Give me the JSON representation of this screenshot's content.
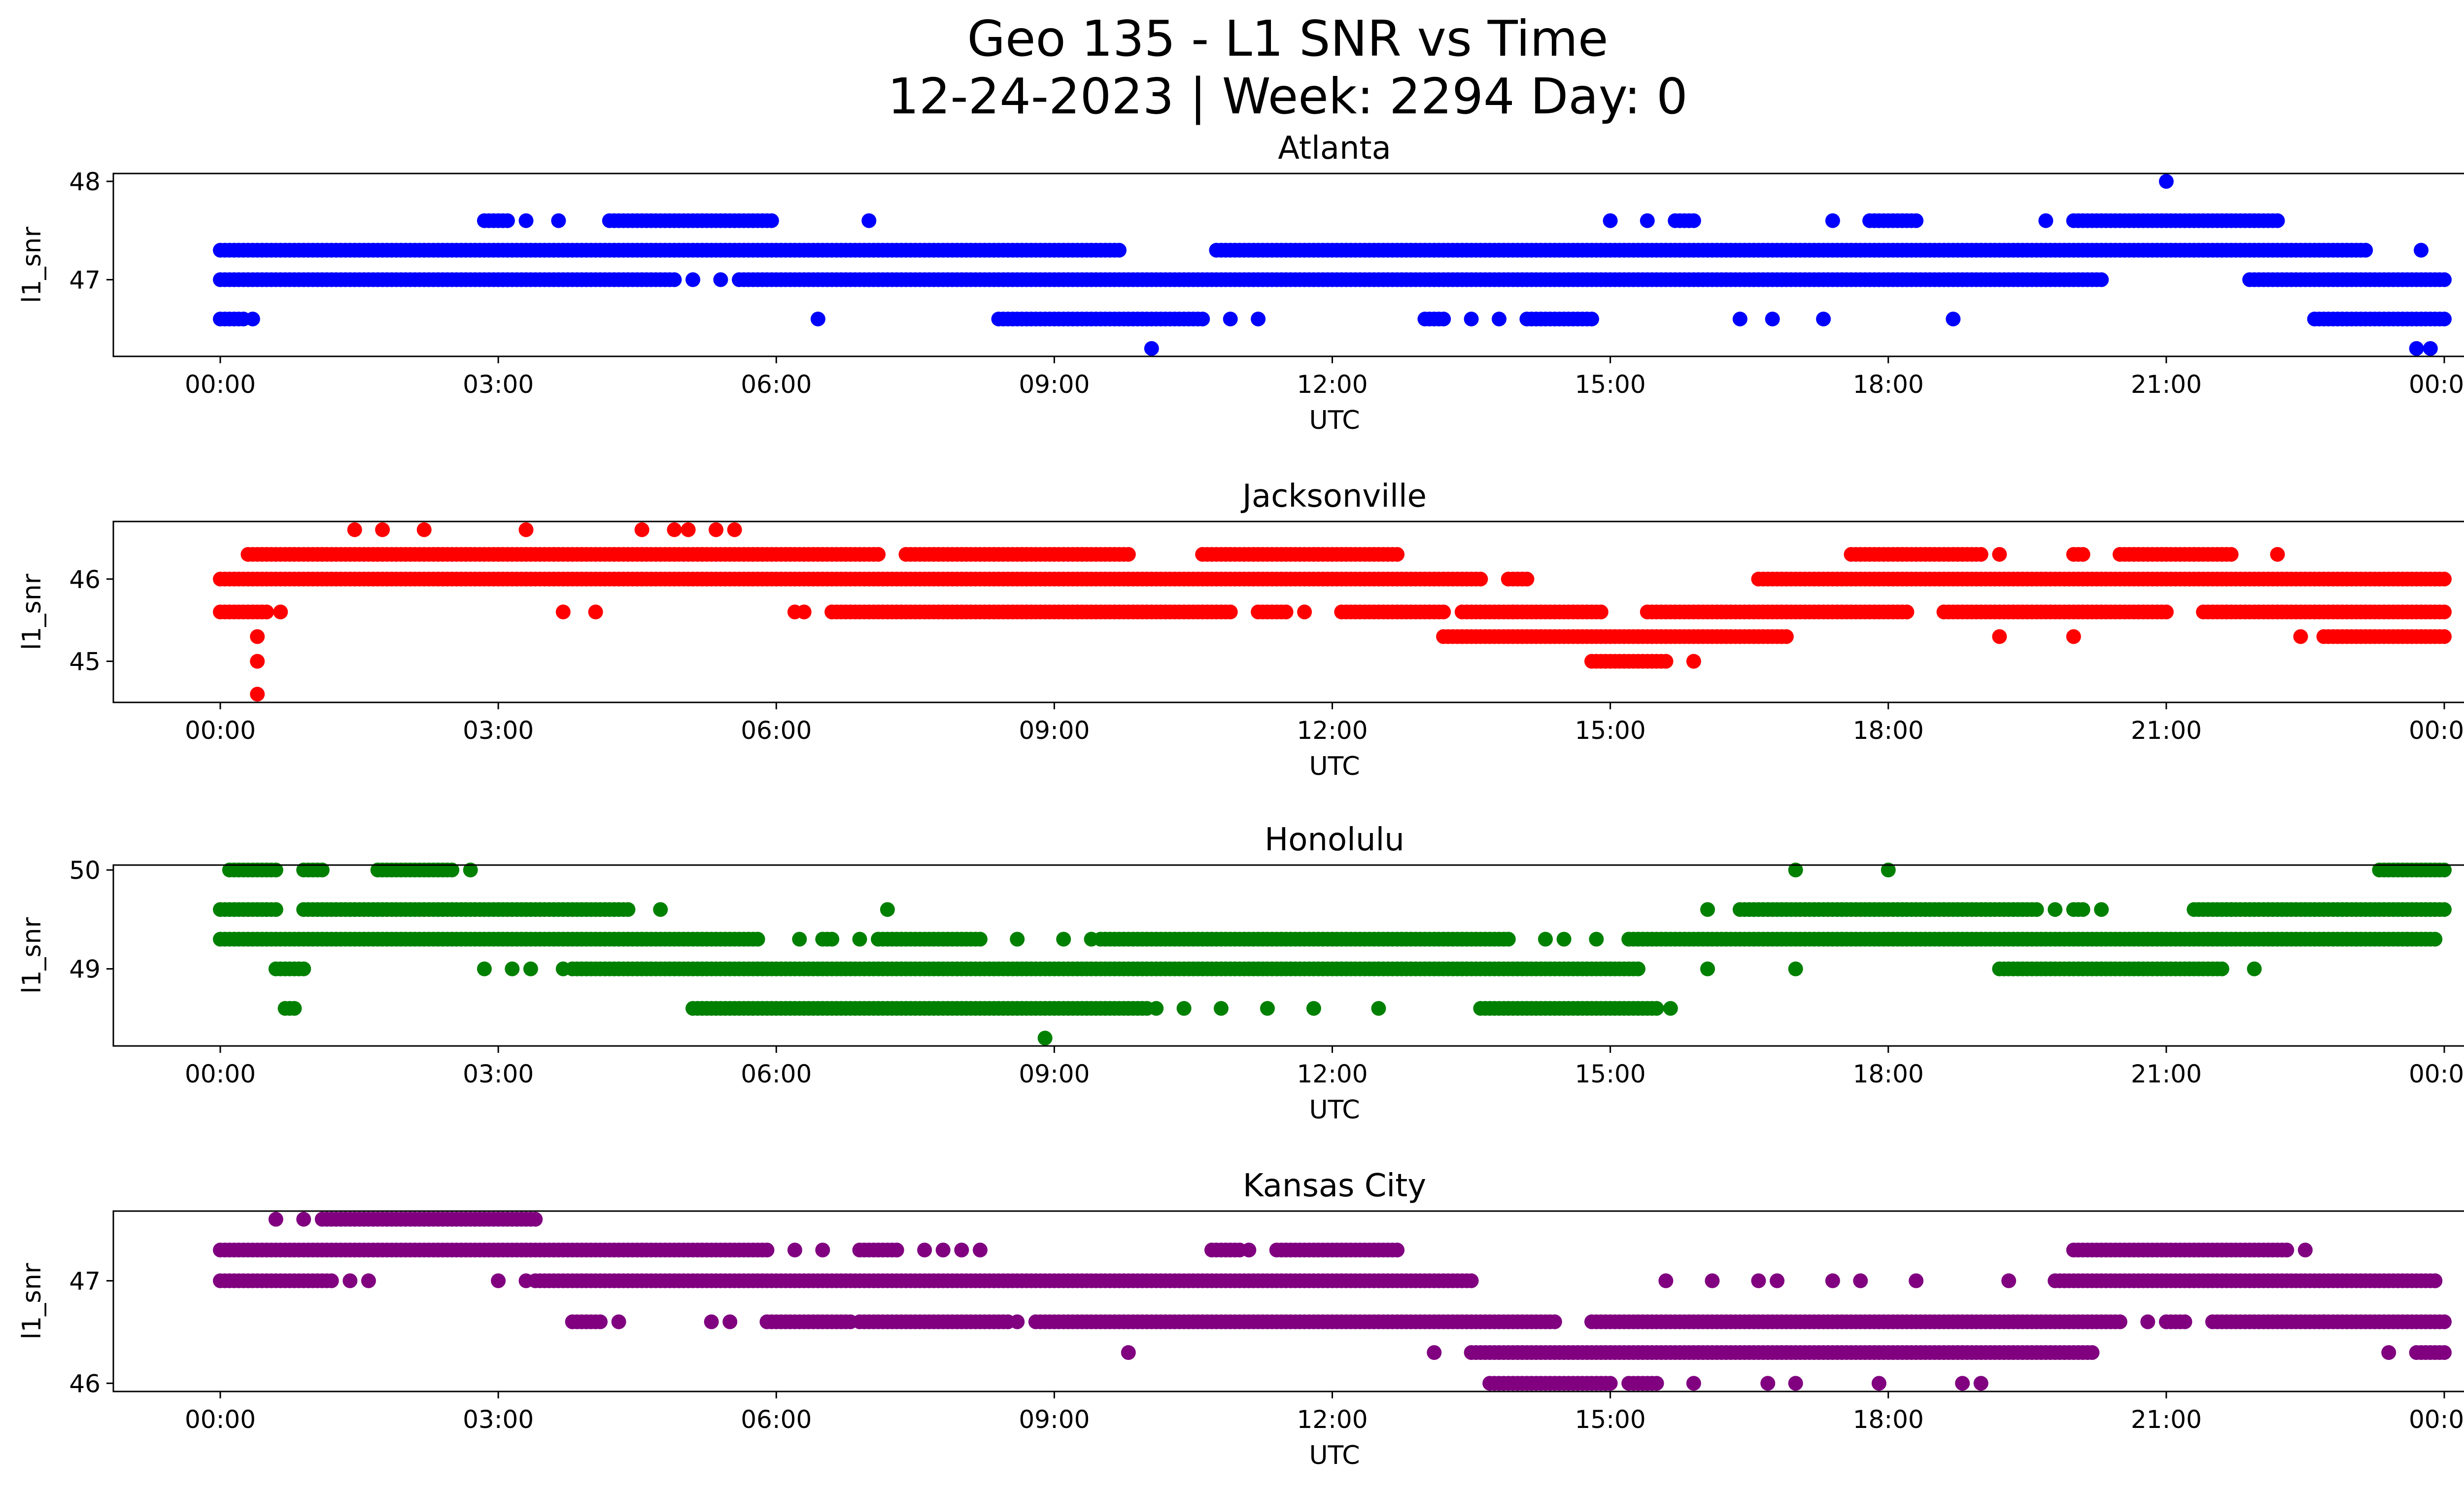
{
  "figure": {
    "title_line1": "Geo 135 - L1 SNR vs Time",
    "title_line2": "12-24-2023 | Week: 2294 Day: 0"
  },
  "chart_data": [
    {
      "type": "scatter",
      "title": "Atlanta",
      "xlabel": "UTC",
      "ylabel": "l1_snr",
      "color": "#0000ff",
      "xlim": [
        "23:59:59-prev",
        "00:45 next day"
      ],
      "x_ticks": [
        "00:00",
        "03:00",
        "06:00",
        "09:00",
        "12:00",
        "15:00",
        "18:00",
        "21:00",
        "00:00"
      ],
      "y_ticks": [
        47,
        48
      ],
      "ylim": [
        46.22,
        48.08
      ],
      "bands": [
        {
          "y": 47.3,
          "ranges": [
            [
              0.0,
              9.7
            ],
            [
              10.75,
              23.15
            ]
          ]
        },
        {
          "y": 47.0,
          "ranges": [
            [
              0.0,
              4.9
            ],
            [
              5.6,
              20.3
            ],
            [
              21.9,
              22.1
            ],
            [
              22.15,
              24.0
            ]
          ]
        },
        {
          "y": 46.6,
          "ranges": [
            [
              0.0,
              0.25
            ],
            [
              8.4,
              10.6
            ],
            [
              13.0,
              13.2
            ],
            [
              14.1,
              14.8
            ],
            [
              22.6,
              24.0
            ]
          ]
        },
        {
          "y": 47.6,
          "ranges": [
            [
              2.85,
              3.1
            ],
            [
              4.2,
              5.95
            ],
            [
              15.7,
              15.9
            ],
            [
              17.8,
              18.3
            ],
            [
              20.0,
              22.2
            ]
          ]
        }
      ],
      "points": [
        [
          0.35,
          46.6
        ],
        [
          5.1,
          47.0
        ],
        [
          5.4,
          47.0
        ],
        [
          6.45,
          46.6
        ],
        [
          7.0,
          47.6
        ],
        [
          10.9,
          46.6
        ],
        [
          11.2,
          46.6
        ],
        [
          13.5,
          46.6
        ],
        [
          13.8,
          46.6
        ],
        [
          15.0,
          47.6
        ],
        [
          15.4,
          47.6
        ],
        [
          16.4,
          46.6
        ],
        [
          16.75,
          46.6
        ],
        [
          17.3,
          46.6
        ],
        [
          17.4,
          47.6
        ],
        [
          18.7,
          46.6
        ],
        [
          19.7,
          47.6
        ],
        [
          3.3,
          47.6
        ],
        [
          3.65,
          47.6
        ],
        [
          23.75,
          47.3
        ],
        [
          21.0,
          48.0
        ],
        [
          10.05,
          46.3
        ],
        [
          23.7,
          46.3
        ],
        [
          23.85,
          46.3
        ]
      ]
    },
    {
      "type": "scatter",
      "title": "Jacksonville",
      "xlabel": "UTC",
      "ylabel": "l1_snr",
      "color": "#ff0000",
      "x_ticks": [
        "00:00",
        "03:00",
        "06:00",
        "09:00",
        "12:00",
        "15:00",
        "18:00",
        "21:00",
        "00:00"
      ],
      "y_ticks": [
        45,
        46
      ],
      "ylim": [
        44.5,
        46.7
      ],
      "bands": [
        {
          "y": 46.3,
          "ranges": [
            [
              0.3,
              7.1
            ],
            [
              7.4,
              9.8
            ],
            [
              10.6,
              12.7
            ],
            [
              17.6,
              19.0
            ],
            [
              20.0,
              20.1
            ],
            [
              20.5,
              21.7
            ]
          ]
        },
        {
          "y": 46.0,
          "ranges": [
            [
              0.0,
              13.6
            ],
            [
              13.9,
              14.1
            ],
            [
              16.6,
              24.0
            ]
          ]
        },
        {
          "y": 45.6,
          "ranges": [
            [
              0.0,
              0.5
            ],
            [
              6.6,
              10.9
            ],
            [
              11.2,
              11.5
            ],
            [
              12.1,
              13.2
            ],
            [
              13.4,
              14.9
            ],
            [
              15.4,
              18.2
            ],
            [
              18.6,
              21.0
            ],
            [
              21.4,
              24.0
            ]
          ]
        },
        {
          "y": 45.3,
          "ranges": [
            [
              13.2,
              16.9
            ],
            [
              22.7,
              24.0
            ]
          ]
        },
        {
          "y": 45.0,
          "ranges": [
            [
              14.8,
              15.6
            ]
          ]
        }
      ],
      "points": [
        [
          0.4,
          45.3
        ],
        [
          0.4,
          45.0
        ],
        [
          0.4,
          44.6
        ],
        [
          0.65,
          45.6
        ],
        [
          1.45,
          46.6
        ],
        [
          1.75,
          46.6
        ],
        [
          2.2,
          46.6
        ],
        [
          3.3,
          46.6
        ],
        [
          4.55,
          46.6
        ],
        [
          4.9,
          46.6
        ],
        [
          5.05,
          46.6
        ],
        [
          5.35,
          46.6
        ],
        [
          5.55,
          46.6
        ],
        [
          3.7,
          45.6
        ],
        [
          4.05,
          45.6
        ],
        [
          6.2,
          45.6
        ],
        [
          6.3,
          45.6
        ],
        [
          11.7,
          45.6
        ],
        [
          15.9,
          45.0
        ],
        [
          19.2,
          46.3
        ],
        [
          19.2,
          45.3
        ],
        [
          20.0,
          45.3
        ],
        [
          22.2,
          46.3
        ],
        [
          22.45,
          45.3
        ],
        [
          13.95,
          45.6
        ]
      ]
    },
    {
      "type": "scatter",
      "title": "Honolulu",
      "xlabel": "UTC",
      "ylabel": "l1_snr",
      "color": "#008000",
      "x_ticks": [
        "00:00",
        "03:00",
        "06:00",
        "09:00",
        "12:00",
        "15:00",
        "18:00",
        "21:00",
        "00:00"
      ],
      "y_ticks": [
        49,
        50
      ],
      "ylim": [
        48.22,
        50.05
      ],
      "bands": [
        {
          "y": 49.6,
          "ranges": [
            [
              0.0,
              0.6
            ],
            [
              0.9,
              4.4
            ],
            [
              16.4,
              19.6
            ],
            [
              20.0,
              20.1
            ],
            [
              21.3,
              24.0
            ]
          ]
        },
        {
          "y": 49.3,
          "ranges": [
            [
              0.0,
              5.8
            ],
            [
              6.5,
              6.6
            ],
            [
              7.1,
              8.2
            ],
            [
              9.5,
              13.9
            ],
            [
              15.2,
              23.9
            ]
          ]
        },
        {
          "y": 49.0,
          "ranges": [
            [
              0.6,
              0.9
            ],
            [
              3.8,
              15.3
            ],
            [
              19.2,
              21.6
            ]
          ]
        },
        {
          "y": 48.6,
          "ranges": [
            [
              0.7,
              0.8
            ],
            [
              5.1,
              10.0
            ],
            [
              13.6,
              15.5
            ]
          ]
        },
        {
          "y": 50.0,
          "ranges": [
            [
              0.1,
              0.6
            ],
            [
              0.9,
              1.1
            ],
            [
              1.7,
              2.5
            ],
            [
              23.3,
              24.0
            ]
          ]
        }
      ],
      "points": [
        [
          2.7,
          50.0
        ],
        [
          4.75,
          49.6
        ],
        [
          2.85,
          49.0
        ],
        [
          3.15,
          49.0
        ],
        [
          3.35,
          49.0
        ],
        [
          3.7,
          49.0
        ],
        [
          6.25,
          49.3
        ],
        [
          6.9,
          49.3
        ],
        [
          7.2,
          49.6
        ],
        [
          8.6,
          49.3
        ],
        [
          9.1,
          49.3
        ],
        [
          9.4,
          49.3
        ],
        [
          8.9,
          48.3
        ],
        [
          10.1,
          48.6
        ],
        [
          10.4,
          48.6
        ],
        [
          10.8,
          48.6
        ],
        [
          11.3,
          48.6
        ],
        [
          11.8,
          48.6
        ],
        [
          12.5,
          48.6
        ],
        [
          14.3,
          49.3
        ],
        [
          14.5,
          49.3
        ],
        [
          14.85,
          49.3
        ],
        [
          16.05,
          49.0
        ],
        [
          16.05,
          49.6
        ],
        [
          17.0,
          50.0
        ],
        [
          17.0,
          49.0
        ],
        [
          18.0,
          50.0
        ],
        [
          19.8,
          49.6
        ],
        [
          20.3,
          49.6
        ],
        [
          21.7,
          49.6
        ],
        [
          21.95,
          49.0
        ],
        [
          23.05,
          49.3
        ],
        [
          23.6,
          49.3
        ],
        [
          15.65,
          48.6
        ]
      ]
    },
    {
      "type": "scatter",
      "title": "Kansas City",
      "xlabel": "UTC",
      "ylabel": "l1_snr",
      "color": "#800080",
      "x_ticks": [
        "00:00",
        "03:00",
        "06:00",
        "09:00",
        "12:00",
        "15:00",
        "18:00",
        "21:00",
        "00:00"
      ],
      "y_ticks": [
        46,
        47
      ],
      "ylim": [
        45.92,
        47.68
      ],
      "bands": [
        {
          "y": 47.6,
          "ranges": [
            [
              1.1,
              3.4
            ]
          ]
        },
        {
          "y": 47.3,
          "ranges": [
            [
              0.0,
              5.9
            ],
            [
              6.9,
              7.3
            ],
            [
              10.7,
              11.0
            ],
            [
              11.4,
              12.7
            ],
            [
              20.0,
              22.3
            ]
          ]
        },
        {
          "y": 47.0,
          "ranges": [
            [
              0.0,
              1.2
            ],
            [
              3.4,
              13.5
            ],
            [
              19.8,
              23.9
            ]
          ]
        },
        {
          "y": 46.6,
          "ranges": [
            [
              3.8,
              4.1
            ],
            [
              5.9,
              6.8
            ],
            [
              6.9,
              8.5
            ],
            [
              8.8,
              14.4
            ],
            [
              14.8,
              20.5
            ],
            [
              21.0,
              21.2
            ],
            [
              21.5,
              24.0
            ]
          ]
        },
        {
          "y": 46.3,
          "ranges": [
            [
              13.5,
              20.2
            ],
            [
              23.7,
              24.0
            ]
          ]
        },
        {
          "y": 46.0,
          "ranges": [
            [
              13.7,
              15.0
            ],
            [
              15.2,
              15.5
            ]
          ]
        }
      ],
      "points": [
        [
          0.6,
          47.6
        ],
        [
          0.9,
          47.6
        ],
        [
          1.4,
          47.0
        ],
        [
          1.6,
          47.0
        ],
        [
          3.0,
          47.0
        ],
        [
          3.3,
          47.0
        ],
        [
          4.3,
          46.6
        ],
        [
          5.3,
          46.6
        ],
        [
          5.5,
          46.6
        ],
        [
          6.2,
          47.3
        ],
        [
          6.5,
          47.3
        ],
        [
          7.6,
          47.3
        ],
        [
          7.8,
          47.3
        ],
        [
          8.0,
          47.3
        ],
        [
          8.2,
          47.3
        ],
        [
          8.6,
          46.6
        ],
        [
          9.8,
          46.3
        ],
        [
          11.1,
          47.3
        ],
        [
          13.1,
          46.3
        ],
        [
          15.6,
          47.0
        ],
        [
          16.1,
          47.0
        ],
        [
          16.6,
          47.0
        ],
        [
          16.8,
          47.0
        ],
        [
          17.0,
          46.0
        ],
        [
          17.4,
          47.0
        ],
        [
          17.7,
          47.0
        ],
        [
          18.3,
          47.0
        ],
        [
          17.9,
          46.0
        ],
        [
          18.8,
          46.0
        ],
        [
          19.0,
          46.0
        ],
        [
          19.3,
          47.0
        ],
        [
          20.8,
          46.6
        ],
        [
          22.5,
          47.3
        ],
        [
          22.7,
          46.6
        ],
        [
          23.4,
          46.3
        ],
        [
          15.9,
          46.0
        ],
        [
          16.7,
          46.0
        ],
        [
          23.9,
          47.0
        ]
      ]
    }
  ]
}
